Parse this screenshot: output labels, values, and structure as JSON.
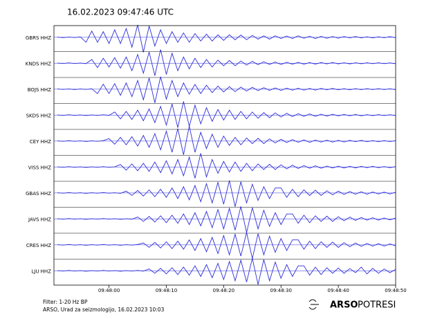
{
  "chart_data": {
    "type": "line",
    "title": "16.02.2023  09:47:46 UTC",
    "x": [
      51,
      52,
      53,
      54,
      55,
      56,
      57,
      58,
      59,
      60,
      61,
      62,
      63,
      64,
      65,
      66,
      67,
      68,
      69,
      70,
      71,
      72,
      73,
      74,
      75,
      76,
      77,
      78,
      79,
      80,
      81,
      82,
      83,
      84,
      85,
      86,
      87,
      88,
      89,
      90,
      91,
      92,
      93,
      94,
      95,
      96,
      97,
      98,
      99,
      100,
      101,
      102,
      103,
      104,
      105,
      106,
      107,
      108,
      109,
      110
    ],
    "xlim": [
      50.4,
      110
    ],
    "xticks": [
      {
        "value": 60,
        "label": "09:48:00"
      },
      {
        "value": 70,
        "label": "09:48:10"
      },
      {
        "value": 80,
        "label": "09:48:20"
      },
      {
        "value": 90,
        "label": "09:48:30"
      },
      {
        "value": 100,
        "label": "09:48:40"
      },
      {
        "value": 110,
        "label": "09:48:50"
      }
    ],
    "ylim": [
      -1,
      1
    ],
    "series": [
      {
        "name": "GBRS HHZ",
        "color": "#2b2bd8",
        "values": [
          0.02,
          -0.03,
          0.02,
          -0.02,
          0.03,
          -0.4,
          0.5,
          -0.4,
          0.45,
          -0.5,
          0.6,
          -0.5,
          0.7,
          -0.8,
          1.0,
          -1.2,
          0.9,
          -0.7,
          0.6,
          -0.5,
          0.45,
          -0.4,
          0.35,
          -0.4,
          0.3,
          -0.3,
          0.25,
          -0.3,
          0.2,
          -0.25,
          0.2,
          -0.2,
          0.18,
          -0.2,
          0.15,
          -0.15,
          0.12,
          -0.15,
          0.12,
          -0.1,
          0.1,
          -0.1,
          0.12,
          -0.08,
          0.08,
          -0.1,
          0.07,
          -0.08,
          0.06,
          -0.07,
          0.06,
          -0.05,
          0.06,
          -0.05,
          0.04,
          -0.05,
          0.04,
          -0.04,
          0.05,
          -0.04
        ]
      },
      {
        "name": "KNDS HHZ",
        "color": "#2b2bd8",
        "values": [
          0.02,
          -0.02,
          0.03,
          -0.02,
          0.02,
          -0.03,
          0.3,
          -0.35,
          0.4,
          -0.3,
          0.45,
          -0.4,
          0.5,
          -0.6,
          0.7,
          -0.8,
          0.9,
          -1.0,
          1.1,
          -0.9,
          0.8,
          -0.6,
          0.5,
          -0.45,
          0.4,
          -0.35,
          0.3,
          -0.3,
          0.25,
          -0.2,
          0.22,
          -0.2,
          0.18,
          -0.15,
          0.15,
          -0.12,
          0.12,
          -0.1,
          0.1,
          -0.1,
          0.08,
          -0.08,
          0.07,
          -0.08,
          0.06,
          -0.07,
          0.06,
          -0.05,
          0.06,
          -0.05,
          0.04,
          -0.05,
          0.04,
          -0.04,
          0.04,
          -0.03,
          0.04,
          -0.03,
          0.03,
          -0.04
        ]
      },
      {
        "name": "BOJS HHZ",
        "color": "#2b2bd8",
        "values": [
          0.02,
          -0.02,
          0.02,
          -0.03,
          0.02,
          -0.02,
          0.03,
          -0.35,
          0.4,
          -0.35,
          0.45,
          -0.5,
          0.5,
          -0.6,
          0.7,
          -0.85,
          0.9,
          -1.1,
          1.0,
          -0.8,
          0.7,
          -0.6,
          0.5,
          -0.4,
          0.38,
          -0.35,
          0.32,
          -0.28,
          0.25,
          -0.22,
          0.2,
          -0.2,
          0.17,
          -0.15,
          0.15,
          -0.12,
          0.12,
          -0.1,
          0.1,
          -0.1,
          0.08,
          -0.08,
          0.07,
          -0.08,
          0.06,
          -0.07,
          0.06,
          -0.05,
          0.06,
          -0.05,
          0.04,
          -0.05,
          0.04,
          -0.04,
          0.04,
          -0.03,
          0.04,
          -0.03,
          0.03,
          -0.04
        ]
      },
      {
        "name": "SKDS HHZ",
        "color": "#2b2bd8",
        "values": [
          0.02,
          -0.02,
          0.03,
          -0.02,
          0.02,
          -0.03,
          0.02,
          -0.02,
          0.03,
          -0.02,
          0.25,
          -0.3,
          0.3,
          -0.35,
          0.4,
          -0.45,
          0.5,
          -0.6,
          0.7,
          -0.8,
          0.9,
          -1.0,
          1.1,
          -0.9,
          0.8,
          -0.7,
          0.6,
          -0.5,
          0.45,
          -0.4,
          0.4,
          -0.35,
          0.3,
          -0.3,
          0.25,
          -0.25,
          0.2,
          -0.2,
          0.18,
          -0.15,
          0.15,
          -0.12,
          0.12,
          -0.1,
          0.1,
          -0.1,
          0.08,
          -0.08,
          0.07,
          -0.06,
          0.06,
          -0.05,
          0.05,
          -0.05,
          0.04,
          -0.04,
          0.04,
          -0.03,
          0.03,
          -0.03
        ]
      },
      {
        "name": "CEY HHZ",
        "color": "#2b2bd8",
        "values": [
          0.02,
          -0.02,
          0.03,
          -0.02,
          0.02,
          -0.03,
          0.02,
          -0.02,
          0.03,
          0.2,
          -0.25,
          0.3,
          -0.3,
          0.35,
          -0.4,
          0.45,
          -0.5,
          0.6,
          -0.7,
          0.8,
          -0.9,
          1.0,
          -1.1,
          1.2,
          -0.9,
          0.7,
          -0.6,
          0.55,
          -0.5,
          0.4,
          -0.35,
          0.3,
          -0.3,
          0.25,
          -0.2,
          0.22,
          -0.2,
          0.18,
          -0.15,
          0.15,
          -0.12,
          0.12,
          -0.1,
          0.1,
          -0.1,
          0.08,
          -0.08,
          0.07,
          -0.08,
          0.06,
          -0.07,
          0.06,
          -0.05,
          0.06,
          -0.05,
          0.04,
          -0.05,
          0.04,
          -0.04,
          0.03
        ]
      },
      {
        "name": "VISS HHZ",
        "color": "#2b2bd8",
        "values": [
          0.02,
          -0.02,
          0.03,
          -0.02,
          0.02,
          -0.03,
          0.02,
          -0.02,
          0.03,
          -0.02,
          0.02,
          0.2,
          -0.25,
          0.25,
          -0.3,
          0.3,
          -0.35,
          0.4,
          -0.45,
          0.5,
          -0.55,
          0.6,
          -0.7,
          0.8,
          -0.9,
          1.1,
          -0.8,
          0.6,
          -0.5,
          0.45,
          -0.4,
          0.4,
          -0.35,
          0.3,
          -0.3,
          0.25,
          -0.2,
          0.22,
          -0.2,
          0.18,
          -0.15,
          0.15,
          -0.12,
          0.12,
          -0.1,
          0.1,
          -0.1,
          0.08,
          -0.08,
          0.07,
          -0.08,
          0.06,
          -0.07,
          0.06,
          -0.05,
          0.06,
          -0.05,
          0.04,
          -0.05,
          0.04
        ]
      },
      {
        "name": "GBAS HHZ",
        "color": "#2b2bd8",
        "values": [
          0.02,
          -0.02,
          0.03,
          -0.02,
          0.02,
          -0.03,
          0.02,
          -0.02,
          0.03,
          -0.02,
          0.02,
          -0.03,
          0.15,
          -0.2,
          0.2,
          -0.25,
          0.25,
          -0.3,
          0.3,
          -0.35,
          0.4,
          -0.45,
          0.5,
          -0.55,
          0.6,
          -0.7,
          0.75,
          -0.8,
          0.85,
          -0.9,
          1.0,
          -1.1,
          0.9,
          -0.8,
          0.7,
          -0.6,
          0.5,
          -0.45,
          0.4,
          0.4,
          -0.35,
          0.3,
          -0.3,
          0.25,
          -0.2,
          0.22,
          -0.2,
          0.18,
          -0.15,
          0.15,
          -0.12,
          0.12,
          -0.1,
          0.1,
          -0.1,
          0.08,
          -0.08,
          0.07,
          -0.08,
          0.06
        ]
      },
      {
        "name": "JAVS HHZ",
        "color": "#2b2bd8",
        "values": [
          0.02,
          -0.02,
          0.03,
          -0.02,
          0.02,
          -0.03,
          0.02,
          -0.02,
          0.03,
          -0.02,
          0.02,
          -0.03,
          0.02,
          -0.02,
          0.15,
          -0.2,
          0.2,
          -0.25,
          0.25,
          -0.3,
          0.3,
          -0.35,
          0.4,
          -0.45,
          0.5,
          -0.55,
          0.6,
          -0.7,
          0.75,
          -0.8,
          0.85,
          -0.9,
          1.0,
          -1.1,
          0.9,
          -0.8,
          0.7,
          -0.6,
          0.5,
          -0.45,
          0.4,
          0.4,
          -0.35,
          0.3,
          -0.3,
          0.25,
          -0.2,
          0.22,
          -0.2,
          0.18,
          -0.15,
          0.15,
          -0.12,
          0.12,
          -0.1,
          0.1,
          -0.1,
          0.08,
          -0.08,
          0.07
        ]
      },
      {
        "name": "CRES HHZ",
        "color": "#2b2bd8",
        "values": [
          0.02,
          -0.02,
          0.03,
          -0.02,
          0.02,
          -0.03,
          0.02,
          -0.02,
          0.03,
          -0.02,
          0.02,
          -0.03,
          0.02,
          -0.02,
          0.03,
          0.15,
          -0.2,
          0.2,
          -0.25,
          0.25,
          -0.3,
          0.3,
          -0.35,
          0.4,
          -0.45,
          0.5,
          -0.55,
          0.6,
          -0.7,
          0.75,
          -0.8,
          0.85,
          -0.9,
          1.0,
          -1.1,
          0.9,
          -0.8,
          0.7,
          -0.6,
          0.5,
          -0.45,
          0.4,
          0.4,
          -0.35,
          0.3,
          -0.3,
          0.25,
          -0.2,
          0.22,
          -0.2,
          0.18,
          -0.15,
          0.15,
          -0.12,
          0.12,
          -0.1,
          0.1,
          -0.1,
          0.08,
          -0.08
        ]
      },
      {
        "name": "LJU HHZ",
        "color": "#2b2bd8",
        "values": [
          0.02,
          -0.02,
          0.03,
          -0.02,
          0.02,
          -0.03,
          0.02,
          -0.02,
          0.03,
          -0.02,
          0.02,
          -0.03,
          0.02,
          -0.02,
          0.03,
          -0.02,
          0.15,
          -0.2,
          0.2,
          -0.25,
          0.25,
          -0.3,
          0.3,
          -0.35,
          0.4,
          -0.45,
          0.5,
          -0.55,
          0.6,
          -0.7,
          0.75,
          -0.8,
          0.85,
          -0.9,
          1.0,
          -1.1,
          0.9,
          -0.8,
          0.7,
          -0.6,
          0.5,
          -0.45,
          0.4,
          0.4,
          -0.35,
          0.3,
          -0.3,
          0.25,
          -0.2,
          0.22,
          -0.2,
          0.18,
          -0.15,
          0.3,
          -0.25,
          0.2,
          -0.2,
          0.15,
          -0.15,
          0.12
        ]
      }
    ]
  },
  "footer": {
    "filter": "Filter: 1-20 Hz BP",
    "credit": "ARSO, Urad za seizmologijo, 16.02.2023  10:03"
  },
  "logo": {
    "brand": "ARSO",
    "product": "POTRESI"
  }
}
